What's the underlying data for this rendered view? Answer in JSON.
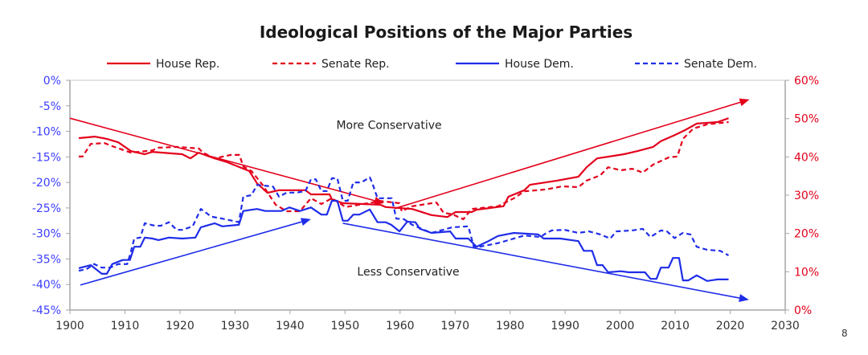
{
  "chart_data": {
    "type": "line",
    "title": "Ideological Positions of the Major Parties",
    "xlim": [
      1900,
      2030
    ],
    "x_ticks": [
      "1900",
      "1910",
      "1920",
      "1930",
      "1940",
      "1950",
      "1960",
      "1970",
      "1980",
      "1990",
      "2000",
      "2010",
      "2020",
      "2030"
    ],
    "left_axis": {
      "range": [
        -45,
        0
      ],
      "color": "#3d3dff",
      "ticks": [
        "0%",
        "-5%",
        "-10%",
        "-15%",
        "-20%",
        "-25%",
        "-30%",
        "-35%",
        "-40%",
        "-45%"
      ]
    },
    "right_axis": {
      "range": [
        0,
        60
      ],
      "color": "#e3001b",
      "ticks": [
        "60%",
        "50%",
        "40%",
        "30%",
        "20%",
        "10%",
        "0%"
      ]
    },
    "grid": false,
    "legend_position": "top",
    "series": [
      {
        "name": "House Rep.",
        "axis": "right",
        "color": "#e3001b",
        "dash": false,
        "points": [
          [
            1901.6,
            44.9
          ],
          [
            1904.5,
            45.3
          ],
          [
            1906.7,
            44.7
          ],
          [
            1908.8,
            43.8
          ],
          [
            1911.1,
            41.5
          ],
          [
            1913.6,
            40.7
          ],
          [
            1915,
            41.3
          ],
          [
            1920.4,
            40.7
          ],
          [
            1921.9,
            39.6
          ],
          [
            1923.4,
            41.1
          ],
          [
            1926.3,
            39.6
          ],
          [
            1928.6,
            38.6
          ],
          [
            1932.6,
            36.3
          ],
          [
            1934,
            33.1
          ],
          [
            1935.9,
            30.6
          ],
          [
            1938,
            31.3
          ],
          [
            1942.8,
            31.3
          ],
          [
            1943.8,
            30.2
          ],
          [
            1947.2,
            30.2
          ],
          [
            1947.6,
            28.9
          ],
          [
            1949.6,
            27.9
          ],
          [
            1956.4,
            27.5
          ],
          [
            1957.4,
            26.9
          ],
          [
            1962.2,
            26.4
          ],
          [
            1965.7,
            24.8
          ],
          [
            1968.6,
            24.3
          ],
          [
            1970.1,
            25.6
          ],
          [
            1973,
            25.6
          ],
          [
            1973.9,
            26.2
          ],
          [
            1978.8,
            27.1
          ],
          [
            1979.7,
            29.6
          ],
          [
            1982.6,
            31.3
          ],
          [
            1983.6,
            32.7
          ],
          [
            1988.5,
            33.8
          ],
          [
            1992.4,
            34.8
          ],
          [
            1993.9,
            37.3
          ],
          [
            1995.8,
            39.6
          ],
          [
            2000.7,
            40.7
          ],
          [
            2003.1,
            41.5
          ],
          [
            2006,
            42.6
          ],
          [
            2007.4,
            44.1
          ],
          [
            2009.9,
            45.7
          ],
          [
            2011.8,
            47.0
          ],
          [
            2013.9,
            48.7
          ],
          [
            2017.7,
            49.1
          ],
          [
            2019.7,
            50.1
          ]
        ]
      },
      {
        "name": "Senate Rep.",
        "axis": "right",
        "color": "#e3001b",
        "dash": true,
        "points": [
          [
            1901.6,
            40.1
          ],
          [
            1902.3,
            40.1
          ],
          [
            1903.8,
            43.4
          ],
          [
            1906.3,
            43.6
          ],
          [
            1907.7,
            42.8
          ],
          [
            1911.1,
            41.1
          ],
          [
            1915,
            41.7
          ],
          [
            1916.1,
            42.4
          ],
          [
            1919.4,
            42.6
          ],
          [
            1923.4,
            42.2
          ],
          [
            1924.2,
            41.1
          ],
          [
            1926.3,
            39.6
          ],
          [
            1929.2,
            40.5
          ],
          [
            1930.8,
            40.5
          ],
          [
            1931.5,
            37.5
          ],
          [
            1933,
            36.3
          ],
          [
            1935,
            32.7
          ],
          [
            1937.4,
            27.5
          ],
          [
            1939.4,
            25.8
          ],
          [
            1941.8,
            25.8
          ],
          [
            1943.8,
            29.2
          ],
          [
            1945.7,
            27.7
          ],
          [
            1947.6,
            29.2
          ],
          [
            1950.1,
            26.9
          ],
          [
            1952.6,
            27.5
          ],
          [
            1956.4,
            28.5
          ],
          [
            1959.9,
            27.9
          ],
          [
            1960.3,
            25.8
          ],
          [
            1962.2,
            27.1
          ],
          [
            1966.6,
            28.1
          ],
          [
            1967.9,
            25.4
          ],
          [
            1969.5,
            25.0
          ],
          [
            1971.5,
            23.7
          ],
          [
            1973,
            26.4
          ],
          [
            1977.8,
            27.1
          ],
          [
            1980.7,
            29.2
          ],
          [
            1982.6,
            31.0
          ],
          [
            1986.6,
            31.5
          ],
          [
            1989.5,
            32.3
          ],
          [
            1992.4,
            32.1
          ],
          [
            1993.9,
            33.8
          ],
          [
            1996.4,
            35.2
          ],
          [
            1997.8,
            37.3
          ],
          [
            2000.1,
            36.5
          ],
          [
            2002.2,
            36.9
          ],
          [
            2004.1,
            35.9
          ],
          [
            2006,
            38.0
          ],
          [
            2008.9,
            39.9
          ],
          [
            2010.4,
            40.1
          ],
          [
            2011.4,
            44.7
          ],
          [
            2013.3,
            47.4
          ],
          [
            2015.8,
            48.5
          ],
          [
            2019.7,
            49.1
          ]
        ]
      },
      {
        "name": "House Dem.",
        "axis": "left",
        "color": "#1f2de8",
        "dash": false,
        "points": [
          [
            1901.6,
            -36.8
          ],
          [
            1903.8,
            -36.2
          ],
          [
            1905.8,
            -37.9
          ],
          [
            1906.7,
            -37.9
          ],
          [
            1907.7,
            -36.0
          ],
          [
            1909.6,
            -35.2
          ],
          [
            1910.9,
            -35.2
          ],
          [
            1911.7,
            -32.6
          ],
          [
            1912.8,
            -32.6
          ],
          [
            1913.6,
            -30.8
          ],
          [
            1915,
            -31.0
          ],
          [
            1916.1,
            -31.3
          ],
          [
            1918,
            -30.8
          ],
          [
            1920.4,
            -31.0
          ],
          [
            1922.8,
            -30.8
          ],
          [
            1923.8,
            -28.8
          ],
          [
            1926.3,
            -28.0
          ],
          [
            1927.7,
            -28.6
          ],
          [
            1930.7,
            -28.3
          ],
          [
            1931.5,
            -25.6
          ],
          [
            1934,
            -25.2
          ],
          [
            1935.5,
            -25.6
          ],
          [
            1938.4,
            -25.6
          ],
          [
            1939.9,
            -24.9
          ],
          [
            1941.8,
            -25.6
          ],
          [
            1943.8,
            -24.9
          ],
          [
            1945.7,
            -26.3
          ],
          [
            1946.7,
            -26.3
          ],
          [
            1947.6,
            -23.6
          ],
          [
            1948.6,
            -23.6
          ],
          [
            1949.6,
            -27.5
          ],
          [
            1950.5,
            -27.5
          ],
          [
            1951.5,
            -26.3
          ],
          [
            1952.6,
            -26.3
          ],
          [
            1954.5,
            -25.3
          ],
          [
            1955.9,
            -27.8
          ],
          [
            1957.4,
            -27.8
          ],
          [
            1958.4,
            -28.3
          ],
          [
            1959.9,
            -29.6
          ],
          [
            1961.3,
            -27.7
          ],
          [
            1962.8,
            -27.8
          ],
          [
            1963.6,
            -29.1
          ],
          [
            1965.7,
            -29.9
          ],
          [
            1969.1,
            -29.6
          ],
          [
            1970.1,
            -31.0
          ],
          [
            1972.4,
            -31.0
          ],
          [
            1973.9,
            -32.6
          ],
          [
            1975.9,
            -31.6
          ],
          [
            1977.8,
            -30.5
          ],
          [
            1980.7,
            -29.9
          ],
          [
            1985.1,
            -30.2
          ],
          [
            1986.1,
            -31.0
          ],
          [
            1989.1,
            -31.0
          ],
          [
            1992.4,
            -31.5
          ],
          [
            1993.4,
            -33.4
          ],
          [
            1994.9,
            -33.4
          ],
          [
            1995.8,
            -36.2
          ],
          [
            1996.8,
            -36.2
          ],
          [
            1997.8,
            -37.6
          ],
          [
            2000.1,
            -37.4
          ],
          [
            2001.6,
            -37.6
          ],
          [
            2004.5,
            -37.6
          ],
          [
            2005.5,
            -38.9
          ],
          [
            2006.6,
            -38.9
          ],
          [
            2007.4,
            -36.7
          ],
          [
            2008.8,
            -36.7
          ],
          [
            2009.6,
            -34.8
          ],
          [
            2010.7,
            -34.8
          ],
          [
            2011.4,
            -39.2
          ],
          [
            2012.4,
            -39.2
          ],
          [
            2013.9,
            -38.2
          ],
          [
            2015.8,
            -39.3
          ],
          [
            2017.7,
            -39.0
          ],
          [
            2019.7,
            -39.0
          ]
        ]
      },
      {
        "name": "Senate Dem.",
        "axis": "left",
        "color": "#1f2de8",
        "dash": true,
        "points": [
          [
            1901.6,
            -37.3
          ],
          [
            1903,
            -37.0
          ],
          [
            1904.4,
            -36.0
          ],
          [
            1905.8,
            -36.7
          ],
          [
            1907.3,
            -36.7
          ],
          [
            1908.8,
            -36.0
          ],
          [
            1910.4,
            -36.0
          ],
          [
            1910.9,
            -34.3
          ],
          [
            1911.7,
            -31.0
          ],
          [
            1912.8,
            -30.8
          ],
          [
            1913.6,
            -28.0
          ],
          [
            1915.5,
            -28.5
          ],
          [
            1916.5,
            -28.5
          ],
          [
            1918,
            -27.8
          ],
          [
            1919.4,
            -29.3
          ],
          [
            1920.4,
            -29.3
          ],
          [
            1922.3,
            -28.6
          ],
          [
            1923.8,
            -25.2
          ],
          [
            1925.7,
            -26.7
          ],
          [
            1928.2,
            -27.2
          ],
          [
            1930.7,
            -27.8
          ],
          [
            1931.5,
            -22.8
          ],
          [
            1933,
            -22.5
          ],
          [
            1934,
            -20.5
          ],
          [
            1936.9,
            -20.8
          ],
          [
            1938,
            -22.8
          ],
          [
            1939.4,
            -22.0
          ],
          [
            1941.3,
            -22.0
          ],
          [
            1942.8,
            -21.7
          ],
          [
            1943.8,
            -19.4
          ],
          [
            1944.7,
            -19.4
          ],
          [
            1945.7,
            -21.7
          ],
          [
            1946.7,
            -21.7
          ],
          [
            1947.6,
            -19.2
          ],
          [
            1948.6,
            -19.2
          ],
          [
            1949.6,
            -23.6
          ],
          [
            1950.5,
            -23.6
          ],
          [
            1951.5,
            -20.0
          ],
          [
            1953,
            -20.0
          ],
          [
            1954.5,
            -19.0
          ],
          [
            1954.9,
            -20.0
          ],
          [
            1955.9,
            -23.1
          ],
          [
            1957.4,
            -23.1
          ],
          [
            1958.5,
            -23.1
          ],
          [
            1959.3,
            -27.1
          ],
          [
            1960.7,
            -27.2
          ],
          [
            1962.2,
            -28.3
          ],
          [
            1965.7,
            -29.9
          ],
          [
            1969.5,
            -28.8
          ],
          [
            1972.4,
            -28.6
          ],
          [
            1973.4,
            -32.6
          ],
          [
            1974.5,
            -32.6
          ],
          [
            1977.8,
            -31.9
          ],
          [
            1980.7,
            -31.0
          ],
          [
            1982.6,
            -30.4
          ],
          [
            1985.5,
            -30.7
          ],
          [
            1986.6,
            -29.9
          ],
          [
            1987.6,
            -29.4
          ],
          [
            1989.9,
            -29.3
          ],
          [
            1992.4,
            -29.9
          ],
          [
            1994.3,
            -29.6
          ],
          [
            1996.4,
            -30.2
          ],
          [
            1998.2,
            -31.0
          ],
          [
            1999.3,
            -29.6
          ],
          [
            2002.2,
            -29.4
          ],
          [
            2004.1,
            -29.1
          ],
          [
            2005.5,
            -30.7
          ],
          [
            2007.4,
            -29.4
          ],
          [
            2008.5,
            -29.6
          ],
          [
            2009.9,
            -30.9
          ],
          [
            2011.4,
            -29.9
          ],
          [
            2012.8,
            -30.2
          ],
          [
            2013.9,
            -32.6
          ],
          [
            2015.8,
            -33.2
          ],
          [
            2018.2,
            -33.4
          ],
          [
            2019.7,
            -34.3
          ]
        ]
      }
    ],
    "trend_arrows": [
      {
        "axis": "right",
        "color": "#e3001b",
        "from": [
          1900,
          50.1
        ],
        "to": [
          1957.1,
          27.9
        ]
      },
      {
        "axis": "right",
        "color": "#e3001b",
        "from": [
          1959,
          26.5
        ],
        "to": [
          2023.5,
          55.0
        ]
      },
      {
        "axis": "left",
        "color": "#1f2de8",
        "from": [
          1901.9,
          -40.1
        ],
        "to": [
          1943.8,
          -27.2
        ]
      },
      {
        "axis": "left",
        "color": "#1f2de8",
        "from": [
          1949.6,
          -28.0
        ],
        "to": [
          2023.4,
          -43.0
        ]
      }
    ],
    "annotations": [
      {
        "text": "More Conservative",
        "x": 1958,
        "y_left": -9.5
      },
      {
        "text": "Less Conservative",
        "x": 1961.5,
        "y_left": -38.2
      }
    ]
  },
  "page_number": "8"
}
